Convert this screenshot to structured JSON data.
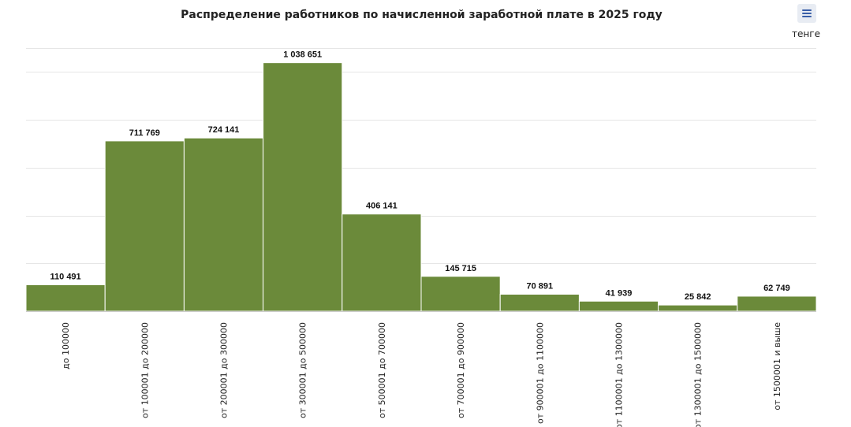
{
  "title": "Распределение работников по начисленной заработной плате в 2025 году",
  "unit": "тенге",
  "menu_icon": "hamburger-menu-icon",
  "colors": {
    "bar": "#6b8a3a",
    "bar_border": "#ffffff",
    "grid": "#e6e6e6",
    "axis": "#cccccc",
    "menu_bg": "#e8ecf3",
    "menu_icon": "#3a5fa8"
  },
  "chart_data": {
    "type": "bar",
    "title": "Распределение работников по начисленной заработной плате в 2025 году",
    "unit": "тенге",
    "xlabel": "",
    "ylabel": "",
    "ylim": [
      0,
      1100000
    ],
    "grid": true,
    "legend": "none",
    "categories": [
      "до 100000",
      "от 100001 до 200000",
      "от 200001 до 300000",
      "от 300001 до 500000",
      "от 500001 до 700000",
      "от 700001 до 900000",
      "от 900001 до 1100000",
      "от 1100001 до 1300000",
      "от 1300001 до 1500000",
      "от 1500001 и выше"
    ],
    "values": [
      110491,
      711769,
      724141,
      1038651,
      406141,
      145715,
      70891,
      41939,
      25842,
      62749
    ],
    "labels": [
      "110 491",
      "711 769",
      "724 141",
      "1 038 651",
      "406 141",
      "145 715",
      "70 891",
      "41 939",
      "25 842",
      "62 749"
    ]
  }
}
